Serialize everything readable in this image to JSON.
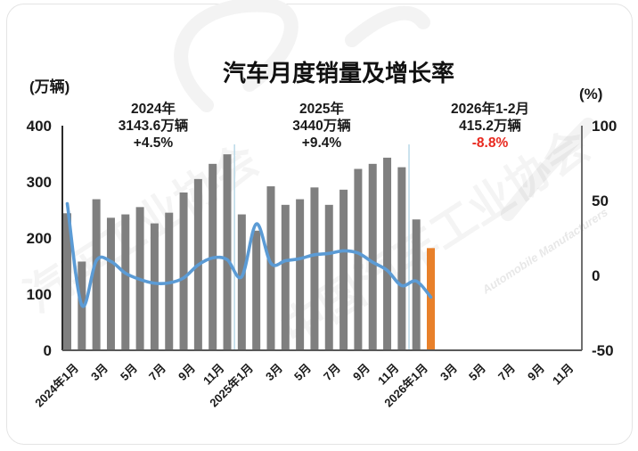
{
  "title": "汽车月度销量及增长率",
  "axis_units": {
    "left": "(万辆)",
    "right": "(%)"
  },
  "annotations": [
    {
      "lines": [
        "2024年",
        "3143.6万辆",
        "+4.5%"
      ],
      "value_color": "#1a1a1a"
    },
    {
      "lines": [
        "2025年",
        "3440万辆",
        "+9.4%"
      ],
      "value_color": "#1a1a1a"
    },
    {
      "lines": [
        "2026年1-2月",
        "415.2万辆",
        "-8.8%"
      ],
      "value_color": "#e8281e"
    }
  ],
  "watermark": {
    "text": "汽车工业协会",
    "text2": "中国汽车工业协会",
    "subtext": "Automobile Manufacturers"
  },
  "chart_data": {
    "type": "bar+line",
    "title": "汽车月度销量及增长率",
    "months": [
      "2024年1月",
      "2024年2月",
      "2024年3月",
      "2024年4月",
      "2024年5月",
      "2024年6月",
      "2024年7月",
      "2024年8月",
      "2024年9月",
      "2024年10月",
      "2024年11月",
      "2024年12月",
      "2025年1月",
      "2025年2月",
      "2025年3月",
      "2025年4月",
      "2025年5月",
      "2025年6月",
      "2025年7月",
      "2025年8月",
      "2025年9月",
      "2025年10月",
      "2025年11月",
      "2025年12月",
      "2026年1月",
      "2026年2月"
    ],
    "bars": {
      "unit": "万辆",
      "values": [
        244,
        158,
        269,
        236,
        242,
        255,
        226,
        245,
        281,
        305,
        332,
        349,
        242,
        213,
        292,
        259,
        269,
        290,
        259,
        286,
        323,
        332,
        343,
        326,
        233,
        182
      ],
      "color": "#7f7f7f",
      "current_color": "#e8802a"
    },
    "line": {
      "unit": "%",
      "values": [
        47.9,
        -19.9,
        9.9,
        9.3,
        1.5,
        -2.7,
        -5.2,
        -5.0,
        -1.7,
        7.0,
        11.7,
        10.5,
        -0.8,
        34.4,
        8.2,
        9.8,
        11.2,
        13.8,
        14.7,
        16.4,
        14.9,
        8.8,
        3.4,
        -6.8,
        -3.8,
        -14.5
      ],
      "color": "#5b9bd5"
    },
    "x_tick_labels": [
      "2024年1月",
      "3月",
      "5月",
      "7月",
      "9月",
      "11月",
      "2025年1月",
      "3月",
      "5月",
      "7月",
      "9月",
      "11月",
      "2026年1月",
      "3月",
      "5月",
      "7月",
      "9月",
      "11月"
    ],
    "months_total": 36,
    "left_axis": {
      "label": "(万辆)",
      "min": 0,
      "max": 400,
      "ticks": [
        0,
        100,
        200,
        300,
        400
      ]
    },
    "right_axis": {
      "label": "(%)",
      "min": -50,
      "max": 100,
      "ticks": [
        -50,
        0,
        50,
        100
      ]
    },
    "year_separator_after": [
      11,
      23
    ],
    "legend": "none",
    "grid": "off"
  }
}
